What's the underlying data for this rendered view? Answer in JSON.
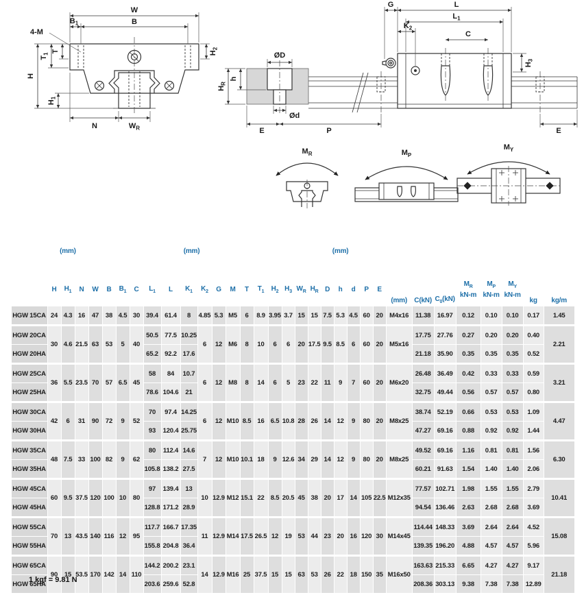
{
  "footnote": "1 kgf = 9.81 N",
  "diagrams": {
    "front": {
      "w": "W",
      "b": "B",
      "b1": {
        "t": "B",
        "s": "1"
      },
      "four_m": "4-M",
      "h2": {
        "t": "H",
        "s": "2"
      },
      "t": "T",
      "t1": {
        "t": "T",
        "s": "1"
      },
      "h": "H",
      "h1": {
        "t": "H",
        "s": "1"
      },
      "n": "N",
      "wr": {
        "t": "W",
        "s": "R"
      }
    },
    "rail": {
      "dD": "ØD",
      "dd": "Ød",
      "h": "h",
      "hr": {
        "t": "H",
        "s": "R"
      },
      "e": "E",
      "p": "P"
    },
    "side": {
      "g": "G",
      "k2": {
        "t": "K",
        "s": "2"
      },
      "l": "L",
      "l1": {
        "t": "L",
        "s": "1"
      },
      "c": "C",
      "h3": {
        "t": "H",
        "s": "3"
      },
      "e": "E"
    },
    "moments": {
      "mr": {
        "t": "M",
        "s": "R"
      },
      "mp": {
        "t": "M",
        "s": "P"
      },
      "my": {
        "t": "M",
        "s": "Y"
      }
    }
  },
  "table": {
    "group_headers": {
      "g1": "(mm)",
      "g2": "(mm)",
      "g3": "(mm)"
    },
    "col_headers": [
      {
        "m": "H"
      },
      {
        "m": "H",
        "s": "1"
      },
      {
        "m": "N"
      },
      {
        "m": "W"
      },
      {
        "m": "B"
      },
      {
        "m": "B",
        "s": "1"
      },
      {
        "m": "C"
      },
      {
        "m": "L",
        "s": "1"
      },
      {
        "m": "L"
      },
      {
        "m": "K",
        "s": "1"
      },
      {
        "m": "K",
        "s": "2"
      },
      {
        "m": "G"
      },
      {
        "m": "M"
      },
      {
        "m": "T"
      },
      {
        "m": "T",
        "s": "1"
      },
      {
        "m": "H",
        "s": "2"
      },
      {
        "m": "H",
        "s": "3"
      },
      {
        "m": "W",
        "s": "R"
      },
      {
        "m": "H",
        "s": "R"
      },
      {
        "m": "D"
      },
      {
        "m": "h"
      },
      {
        "m": "d"
      },
      {
        "m": "P"
      },
      {
        "m": "E"
      },
      {
        "m": "(mm)"
      },
      {
        "m": "C(kN)"
      },
      {
        "m": "C",
        "s": "0",
        "x": "(kN)"
      },
      {
        "m": "M",
        "s": "R",
        "u": "kN-m"
      },
      {
        "m": "M",
        "s": "P",
        "u": "kN-m"
      },
      {
        "m": "M",
        "s": "Y",
        "u": "kN-m"
      },
      {
        "m": "kg"
      },
      {
        "m": "kg/m"
      }
    ],
    "groups": [
      {
        "models": [
          "HGW 15CA"
        ],
        "shared_a": [
          "24",
          "4.3",
          "16",
          "47",
          "38",
          "4.5",
          "30"
        ],
        "rows_llk": [
          [
            "39.4",
            "61.4",
            "8"
          ]
        ],
        "shared_b": [
          "4.85",
          "5.3",
          "M5",
          "6",
          "8.9",
          "3.95",
          "3.7"
        ],
        "shared_c": [
          "15",
          "15",
          "7.5",
          "5.3",
          "4.5",
          "60",
          "20"
        ],
        "bolt": "M4x16",
        "rows_load": [
          [
            "11.38",
            "16.97",
            "0.12",
            "0.10",
            "0.10",
            "0.17"
          ]
        ],
        "kg_m": "1.45"
      },
      {
        "models": [
          "HGW 20CA",
          "HGW 20HA"
        ],
        "shared_a": [
          "30",
          "4.6",
          "21.5",
          "63",
          "53",
          "5",
          "40"
        ],
        "rows_llk": [
          [
            "50.5",
            "77.5",
            "10.25"
          ],
          [
            "65.2",
            "92.2",
            "17.6"
          ]
        ],
        "shared_b": [
          "6",
          "12",
          "M6",
          "8",
          "10",
          "6",
          "6"
        ],
        "shared_c": [
          "20",
          "17.5",
          "9.5",
          "8.5",
          "6",
          "60",
          "20"
        ],
        "bolt": "M5x16",
        "rows_load": [
          [
            "17.75",
            "27.76",
            "0.27",
            "0.20",
            "0.20",
            "0.40"
          ],
          [
            "21.18",
            "35.90",
            "0.35",
            "0.35",
            "0.35",
            "0.52"
          ]
        ],
        "kg_m": "2.21"
      },
      {
        "models": [
          "HGW 25CA",
          "HGW 25HA"
        ],
        "shared_a": [
          "36",
          "5.5",
          "23.5",
          "70",
          "57",
          "6.5",
          "45"
        ],
        "rows_llk": [
          [
            "58",
            "84",
            "10.7"
          ],
          [
            "78.6",
            "104.6",
            "21"
          ]
        ],
        "shared_b": [
          "6",
          "12",
          "M8",
          "8",
          "14",
          "6",
          "5"
        ],
        "shared_c": [
          "23",
          "22",
          "11",
          "9",
          "7",
          "60",
          "20"
        ],
        "bolt": "M6x20",
        "rows_load": [
          [
            "26.48",
            "36.49",
            "0.42",
            "0.33",
            "0.33",
            "0.59"
          ],
          [
            "32.75",
            "49.44",
            "0.56",
            "0.57",
            "0.57",
            "0.80"
          ]
        ],
        "kg_m": "3.21"
      },
      {
        "models": [
          "HGW 30CA",
          "HGW 30HA"
        ],
        "shared_a": [
          "42",
          "6",
          "31",
          "90",
          "72",
          "9",
          "52"
        ],
        "rows_llk": [
          [
            "70",
            "97.4",
            "14.25"
          ],
          [
            "93",
            "120.4",
            "25.75"
          ]
        ],
        "shared_b": [
          "6",
          "12",
          "M10",
          "8.5",
          "16",
          "6.5",
          "10.8"
        ],
        "shared_c": [
          "28",
          "26",
          "14",
          "12",
          "9",
          "80",
          "20"
        ],
        "bolt": "M8x25",
        "rows_load": [
          [
            "38.74",
            "52.19",
            "0.66",
            "0.53",
            "0.53",
            "1.09"
          ],
          [
            "47.27",
            "69.16",
            "0.88",
            "0.92",
            "0.92",
            "1.44"
          ]
        ],
        "kg_m": "4.47"
      },
      {
        "models": [
          "HGW 35CA",
          "HGW 35HA"
        ],
        "shared_a": [
          "48",
          "7.5",
          "33",
          "100",
          "82",
          "9",
          "62"
        ],
        "rows_llk": [
          [
            "80",
            "112.4",
            "14.6"
          ],
          [
            "105.8",
            "138.2",
            "27.5"
          ]
        ],
        "shared_b": [
          "7",
          "12",
          "M10",
          "10.1",
          "18",
          "9",
          "12.6"
        ],
        "shared_c": [
          "34",
          "29",
          "14",
          "12",
          "9",
          "80",
          "20"
        ],
        "bolt": "M8x25",
        "rows_load": [
          [
            "49.52",
            "69.16",
            "1.16",
            "0.81",
            "0.81",
            "1.56"
          ],
          [
            "60.21",
            "91.63",
            "1.54",
            "1.40",
            "1.40",
            "2.06"
          ]
        ],
        "kg_m": "6.30"
      },
      {
        "models": [
          "HGW 45CA",
          "HGW 45HA"
        ],
        "shared_a": [
          "60",
          "9.5",
          "37.5",
          "120",
          "100",
          "10",
          "80"
        ],
        "rows_llk": [
          [
            "97",
            "139.4",
            "13"
          ],
          [
            "128.8",
            "171.2",
            "28.9"
          ]
        ],
        "shared_b": [
          "10",
          "12.9",
          "M12",
          "15.1",
          "22",
          "8.5",
          "20.5"
        ],
        "shared_c": [
          "45",
          "38",
          "20",
          "17",
          "14",
          "105",
          "22.5"
        ],
        "bolt": "M12x35",
        "rows_load": [
          [
            "77.57",
            "102.71",
            "1.98",
            "1.55",
            "1.55",
            "2.79"
          ],
          [
            "94.54",
            "136.46",
            "2.63",
            "2.68",
            "2.68",
            "3.69"
          ]
        ],
        "kg_m": "10.41"
      },
      {
        "models": [
          "HGW 55CA",
          "HGW 55HA"
        ],
        "shared_a": [
          "70",
          "13",
          "43.5",
          "140",
          "116",
          "12",
          "95"
        ],
        "rows_llk": [
          [
            "117.7",
            "166.7",
            "17.35"
          ],
          [
            "155.8",
            "204.8",
            "36.4"
          ]
        ],
        "shared_b": [
          "11",
          "12.9",
          "M14",
          "17.5",
          "26.5",
          "12",
          "19"
        ],
        "shared_c": [
          "53",
          "44",
          "23",
          "20",
          "16",
          "120",
          "30"
        ],
        "bolt": "M14x45",
        "rows_load": [
          [
            "114.44",
            "148.33",
            "3.69",
            "2.64",
            "2.64",
            "4.52"
          ],
          [
            "139.35",
            "196.20",
            "4.88",
            "4.57",
            "4.57",
            "5.96"
          ]
        ],
        "kg_m": "15.08"
      },
      {
        "models": [
          "HGW 65CA",
          "HGW 65HA"
        ],
        "shared_a": [
          "90",
          "15",
          "53.5",
          "170",
          "142",
          "14",
          "110"
        ],
        "rows_llk": [
          [
            "144.2",
            "200.2",
            "23.1"
          ],
          [
            "203.6",
            "259.6",
            "52.8"
          ]
        ],
        "shared_b": [
          "14",
          "12.9",
          "M16",
          "25",
          "37.5",
          "15",
          "15"
        ],
        "shared_c": [
          "63",
          "53",
          "26",
          "22",
          "18",
          "150",
          "35"
        ],
        "bolt": "M16x50",
        "rows_load": [
          [
            "163.63",
            "215.33",
            "6.65",
            "4.27",
            "4.27",
            "9.17"
          ],
          [
            "208.36",
            "303.13",
            "9.38",
            "7.38",
            "7.38",
            "12.89"
          ]
        ],
        "kg_m": "21.18"
      }
    ]
  }
}
